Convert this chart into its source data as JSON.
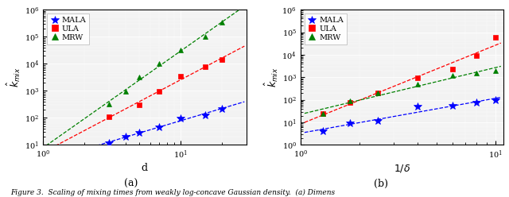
{
  "plot_a": {
    "xlabel": "d",
    "ylabel": "$\\hat{k}_{mix}$",
    "label": "(a)",
    "xlim": [
      1.0,
      30.0
    ],
    "ylim": [
      10.0,
      1000000.0
    ],
    "mala": {
      "x": [
        3,
        4,
        5,
        7,
        10,
        15,
        20
      ],
      "y": [
        12,
        20,
        28,
        45,
        95,
        130,
        220
      ],
      "color": "blue",
      "marker": "*",
      "label": "MALA",
      "ms": 7
    },
    "ula": {
      "x": [
        3,
        5,
        7,
        10,
        15,
        20
      ],
      "y": [
        110,
        310,
        960,
        3500,
        8000,
        14000
      ],
      "color": "red",
      "marker": "s",
      "label": "ULA",
      "ms": 5
    },
    "mrw": {
      "x": [
        3,
        4,
        5,
        7,
        10,
        15,
        20
      ],
      "y": [
        330,
        980,
        3300,
        10000,
        33000,
        100000,
        350000
      ],
      "color": "green",
      "marker": "^",
      "label": "MRW",
      "ms": 5
    }
  },
  "plot_b": {
    "xlabel": "$1/\\delta$",
    "ylabel": "$\\hat{k}_{mix}$",
    "label": "(b)",
    "xlim": [
      1.0,
      11.0
    ],
    "ylim": [
      1.0,
      1000000.0
    ],
    "mala": {
      "x": [
        1.3,
        1.8,
        2.5,
        4.0,
        6.0,
        8.0,
        10.0
      ],
      "y": [
        4,
        9,
        12,
        50,
        55,
        75,
        95
      ],
      "color": "blue",
      "marker": "*",
      "label": "MALA",
      "ms": 7
    },
    "ula": {
      "x": [
        1.3,
        1.8,
        2.5,
        4.0,
        6.0,
        8.0,
        10.0
      ],
      "y": [
        25,
        75,
        200,
        960,
        2300,
        9000,
        60000
      ],
      "color": "red",
      "marker": "s",
      "label": "ULA",
      "ms": 5
    },
    "mrw": {
      "x": [
        1.3,
        1.8,
        2.5,
        4.0,
        6.0,
        8.0,
        10.0
      ],
      "y": [
        25,
        90,
        200,
        500,
        1200,
        1500,
        2000
      ],
      "color": "green",
      "marker": "^",
      "label": "MRW",
      "ms": 5
    }
  },
  "figure_caption": "Figure 3.  Scaling of mixing times from weakly log-concave Gaussian density.  (a) Dimens",
  "bg_color": "#f2f2f2",
  "panel_label_fontsize": 9,
  "tick_fontsize": 7,
  "label_fontsize": 9,
  "legend_fontsize": 7,
  "caption_fontsize": 6.5
}
